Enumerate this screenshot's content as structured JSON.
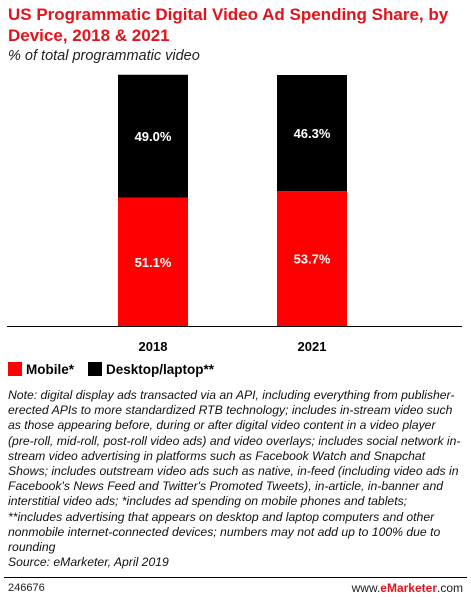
{
  "title": "US Programmatic Digital Video Ad Spending Share, by Device, 2018 & 2021",
  "subtitle": "% of total programmatic video",
  "colors": {
    "mobile": "#ff0000",
    "desktop": "#000000",
    "title": "#e4131b"
  },
  "legend": [
    {
      "label": "Mobile*",
      "color": "#ff0000"
    },
    {
      "label": "Desktop/laptop**",
      "color": "#000000"
    }
  ],
  "note": "Note: digital display ads transacted via an API, including everything from publisher-erected APIs to more standardized RTB technology; includes in-stream video such as those appearing before, during or after digital video content in a video player (pre-roll, mid-roll, post-roll video ads) and video overlays; includes social network in-stream video advertising in platforms such as Facebook Watch and Snapchat Shows; includes outstream video ads such as native, in-feed (including video ads in Facebook's News Feed and Twitter's Promoted Tweets), in-article, in-banner and interstitial video ads; *includes ad spending on mobile phones and tablets; **includes advertising that appears on desktop and laptop computers and other nonmobile internet-connected devices; numbers may not add up to 100% due to rounding",
  "source": "Source: eMarketer, April 2019",
  "footer": {
    "id": "246676",
    "brand_prefix": "www.",
    "brand_name": "eMarketer",
    "brand_suffix": ".com"
  },
  "chart_data": {
    "type": "bar",
    "stacked": true,
    "categories": [
      "2018",
      "2021"
    ],
    "series": [
      {
        "name": "Mobile*",
        "values": [
          51.1,
          53.7
        ],
        "labels": [
          "51.1%",
          "53.7%"
        ],
        "color": "#ff0000"
      },
      {
        "name": "Desktop/laptop**",
        "values": [
          49.0,
          46.3
        ],
        "labels": [
          "49.0%",
          "46.3%"
        ],
        "color": "#000000"
      }
    ],
    "ylim": [
      0,
      100
    ],
    "grid": false,
    "legend_position": "bottom-left"
  }
}
